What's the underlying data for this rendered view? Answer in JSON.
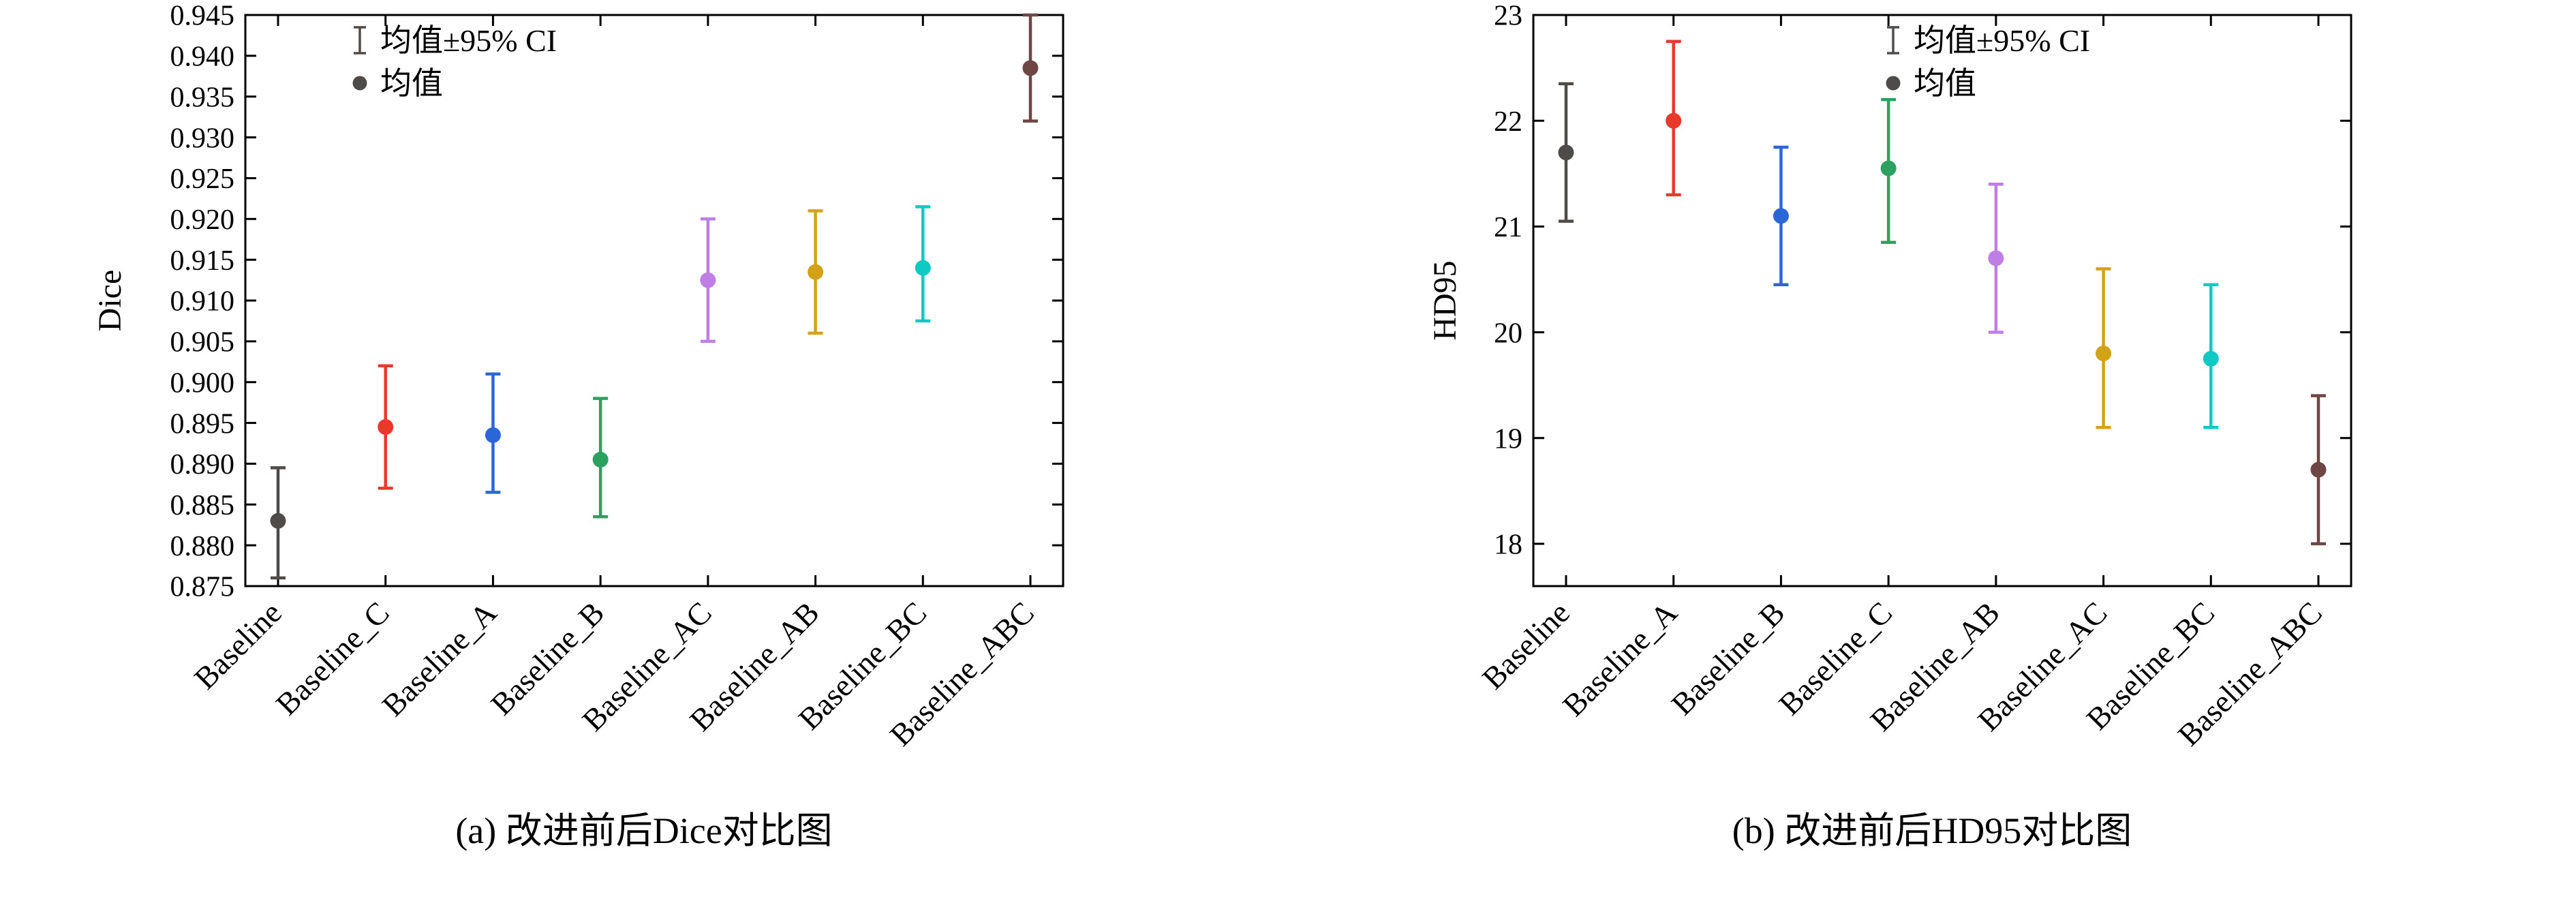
{
  "colors": {
    "axis": "#000000",
    "text": "#000000",
    "legend_glyph": "#4f4b49",
    "background": "#ffffff"
  },
  "chart_data": [
    {
      "type": "scatter",
      "title": "",
      "caption": "(a) 改进前后Dice对比图",
      "xlabel": "",
      "ylabel": "Dice",
      "ylim": [
        0.875,
        0.945
      ],
      "yticks": [
        0.875,
        0.88,
        0.885,
        0.89,
        0.895,
        0.9,
        0.905,
        0.91,
        0.915,
        0.92,
        0.925,
        0.93,
        0.935,
        0.94,
        0.945
      ],
      "ytick_labels": [
        "0.875",
        "0.880",
        "0.885",
        "0.890",
        "0.895",
        "0.900",
        "0.905",
        "0.910",
        "0.915",
        "0.920",
        "0.925",
        "0.930",
        "0.935",
        "0.940",
        "0.945"
      ],
      "grid": false,
      "legend": {
        "position": "top-inside",
        "x_frac": 0.14,
        "errorbar_label": "均值±95% CI",
        "mean_label": "均值"
      },
      "categories": [
        "Baseline",
        "Baseline_C",
        "Baseline_A",
        "Baseline_B",
        "Baseline_AC",
        "Baseline_AB",
        "Baseline_BC",
        "Baseline_ABC"
      ],
      "series": [
        {
          "category": "Baseline",
          "mean": 0.883,
          "ci_low": 0.876,
          "ci_high": 0.8895,
          "color": "#4f4b49"
        },
        {
          "category": "Baseline_C",
          "mean": 0.8945,
          "ci_low": 0.887,
          "ci_high": 0.902,
          "color": "#e8392b"
        },
        {
          "category": "Baseline_A",
          "mean": 0.8935,
          "ci_low": 0.8865,
          "ci_high": 0.901,
          "color": "#2b66d8"
        },
        {
          "category": "Baseline_B",
          "mean": 0.8905,
          "ci_low": 0.8835,
          "ci_high": 0.898,
          "color": "#2ca05f"
        },
        {
          "category": "Baseline_AC",
          "mean": 0.9125,
          "ci_low": 0.905,
          "ci_high": 0.92,
          "color": "#bf7de6"
        },
        {
          "category": "Baseline_AB",
          "mean": 0.9135,
          "ci_low": 0.906,
          "ci_high": 0.921,
          "color": "#d4a216"
        },
        {
          "category": "Baseline_BC",
          "mean": 0.914,
          "ci_low": 0.9075,
          "ci_high": 0.9215,
          "color": "#0fc9c3"
        },
        {
          "category": "Baseline_ABC",
          "mean": 0.9385,
          "ci_low": 0.932,
          "ci_high": 0.945,
          "color": "#6e4745"
        }
      ]
    },
    {
      "type": "scatter",
      "title": "",
      "caption": "(b) 改进前后HD95对比图",
      "xlabel": "",
      "ylabel": "HD95",
      "ylim": [
        17.6,
        23
      ],
      "yticks": [
        18,
        19,
        20,
        21,
        22,
        23
      ],
      "ytick_labels": [
        "18",
        "19",
        "20",
        "21",
        "22",
        "23"
      ],
      "grid": false,
      "legend": {
        "position": "top-inside",
        "x_frac": 0.44,
        "errorbar_label": "均值±95% CI",
        "mean_label": "均值"
      },
      "categories": [
        "Baseline",
        "Baseline_A",
        "Baseline_B",
        "Baseline_C",
        "Baseline_AB",
        "Baseline_AC",
        "Baseline_BC",
        "Baseline_ABC"
      ],
      "series": [
        {
          "category": "Baseline",
          "mean": 21.7,
          "ci_low": 21.05,
          "ci_high": 22.35,
          "color": "#4f4b49"
        },
        {
          "category": "Baseline_A",
          "mean": 22.0,
          "ci_low": 21.3,
          "ci_high": 22.75,
          "color": "#e8392b"
        },
        {
          "category": "Baseline_B",
          "mean": 21.1,
          "ci_low": 20.45,
          "ci_high": 21.75,
          "color": "#2b66d8"
        },
        {
          "category": "Baseline_C",
          "mean": 21.55,
          "ci_low": 20.85,
          "ci_high": 22.2,
          "color": "#2ca05f"
        },
        {
          "category": "Baseline_AB",
          "mean": 20.7,
          "ci_low": 20.0,
          "ci_high": 21.4,
          "color": "#bf7de6"
        },
        {
          "category": "Baseline_AC",
          "mean": 19.8,
          "ci_low": 19.1,
          "ci_high": 20.6,
          "color": "#d4a216"
        },
        {
          "category": "Baseline_BC",
          "mean": 19.75,
          "ci_low": 19.1,
          "ci_high": 20.45,
          "color": "#0fc9c3"
        },
        {
          "category": "Baseline_ABC",
          "mean": 18.7,
          "ci_low": 18.0,
          "ci_high": 19.4,
          "color": "#6e4745"
        }
      ]
    }
  ]
}
